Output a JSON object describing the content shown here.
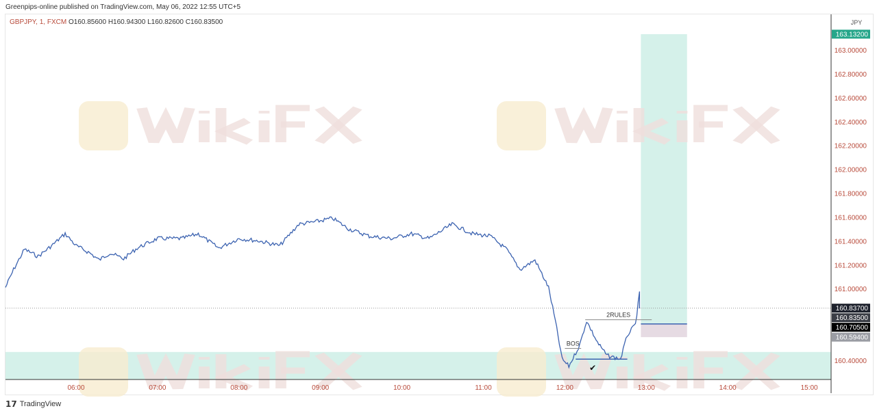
{
  "header": {
    "published": "Greenpips-online published on TradingView.com, May 06, 2022 12:55 UTC+5"
  },
  "legend": {
    "symbol": "GBPJPY, 1, FXCM",
    "open": "O160.85600",
    "high": "H160.94300",
    "low": "L160.82600",
    "close": "C160.83500"
  },
  "footer": {
    "brand": "TradingView"
  },
  "watermark": "WikiFX",
  "colors": {
    "line": "#3b62b0",
    "zone": "#d5f1ea",
    "label_green": "#26a68a",
    "axis_text": "#b84a3a"
  },
  "chart_data": {
    "type": "line",
    "title": "",
    "currency": "JPY",
    "xlim": [
      "05:08",
      "15:20"
    ],
    "ylim": [
      160.24,
      163.2
    ],
    "x_ticks": [
      "06:00",
      "07:00",
      "08:00",
      "09:00",
      "10:00",
      "11:00",
      "12:00",
      "13:00",
      "14:00",
      "15:00"
    ],
    "y_ticks": [
      "163.00000",
      "162.80000",
      "162.60000",
      "162.40000",
      "162.20000",
      "162.00000",
      "161.80000",
      "161.60000",
      "161.40000",
      "161.20000",
      "161.00000",
      "160.40000"
    ],
    "series": [
      {
        "points": [
          [
            "05:08",
            161.01
          ],
          [
            "05:14",
            161.16
          ],
          [
            "05:22",
            161.33
          ],
          [
            "05:32",
            161.27
          ],
          [
            "05:42",
            161.36
          ],
          [
            "05:52",
            161.46
          ],
          [
            "06:00",
            161.36
          ],
          [
            "06:10",
            161.3
          ],
          [
            "06:17",
            161.24
          ],
          [
            "06:25",
            161.3
          ],
          [
            "06:35",
            161.25
          ],
          [
            "06:45",
            161.34
          ],
          [
            "07:00",
            161.42
          ],
          [
            "07:18",
            161.42
          ],
          [
            "07:30",
            161.46
          ],
          [
            "07:45",
            161.34
          ],
          [
            "08:00",
            161.42
          ],
          [
            "08:15",
            161.4
          ],
          [
            "08:30",
            161.36
          ],
          [
            "08:44",
            161.54
          ],
          [
            "08:56",
            161.56
          ],
          [
            "09:09",
            161.59
          ],
          [
            "09:21",
            161.5
          ],
          [
            "09:36",
            161.44
          ],
          [
            "09:52",
            161.42
          ],
          [
            "10:07",
            161.46
          ],
          [
            "10:20",
            161.42
          ],
          [
            "10:37",
            161.54
          ],
          [
            "10:52",
            161.46
          ],
          [
            "11:05",
            161.44
          ],
          [
            "11:17",
            161.33
          ],
          [
            "11:27",
            161.16
          ],
          [
            "11:38",
            161.24
          ],
          [
            "11:48",
            161.01
          ],
          [
            "11:53",
            160.73
          ],
          [
            "11:58",
            160.41
          ],
          [
            "12:03",
            160.35
          ],
          [
            "12:11",
            160.53
          ],
          [
            "12:16",
            160.73
          ],
          [
            "12:24",
            160.55
          ],
          [
            "12:31",
            160.44
          ],
          [
            "12:41",
            160.41
          ],
          [
            "12:46",
            160.61
          ],
          [
            "12:52",
            160.7
          ],
          [
            "12:55",
            160.96
          ],
          [
            "12:55",
            160.835
          ]
        ]
      }
    ],
    "price_labels": [
      {
        "text": "163.13200",
        "value": 163.132,
        "color": "#26a68a"
      },
      {
        "text": "160.83700",
        "value": 160.837,
        "color": "#1e222d"
      },
      {
        "text": "160.83500",
        "value": 160.835,
        "color": "#3a3d45"
      },
      {
        "text": "160.70500",
        "value": 160.705,
        "color": "#000000"
      },
      {
        "text": "160.59400",
        "value": 160.594,
        "color": "#9a9ca3"
      }
    ],
    "long_position": {
      "entry": 160.705,
      "target": 163.132,
      "stop": 160.594,
      "start": "12:56",
      "end": "13:30"
    },
    "demand_zone": {
      "top": 160.47,
      "bottom": 160.24
    },
    "annotations": [
      {
        "text": "BOS",
        "level": 160.5,
        "start": "12:00",
        "end": "12:12"
      },
      {
        "text": "2RULES",
        "level": 160.74,
        "start": "12:15",
        "end": "13:04"
      },
      {
        "text": "✔",
        "value": 160.36,
        "time": "12:18"
      }
    ],
    "grid": false
  }
}
